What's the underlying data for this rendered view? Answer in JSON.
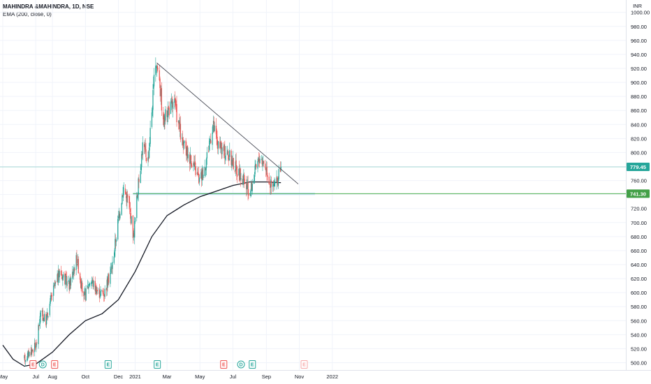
{
  "header": {
    "symbol_line": "MAHINDRA &MAHINDRA, 1D, NSE",
    "indicator_line": "EMA (200, close, 0)"
  },
  "chart_data": {
    "type": "candlestick",
    "currency_label": "INR",
    "ylim": [
      490,
      1010
    ],
    "y_ticks": [
      500,
      520,
      540,
      560,
      580,
      600,
      620,
      640,
      660,
      680,
      700,
      720,
      740,
      760,
      780,
      800,
      820,
      840,
      860,
      880,
      900,
      920,
      940,
      960,
      980,
      1000
    ],
    "y_tick_labels": [
      "500.00",
      "520.00",
      "540.00",
      "560.00",
      "580.00",
      "600.00",
      "620.00",
      "640.00",
      "660.00",
      "680.00",
      "700.00",
      "720.00",
      "740.00",
      "760.00",
      "780.00",
      "800.00",
      "820.00",
      "840.00",
      "860.00",
      "880.00",
      "900.00",
      "920.00",
      "940.00",
      "960.00",
      "980.00",
      "1000.00"
    ],
    "x_range": [
      "2020-05-01",
      "2022-01-31"
    ],
    "x_ticks": [
      {
        "date": "2020-05-01",
        "label": "May"
      },
      {
        "date": "2020-07-01",
        "label": "Jul"
      },
      {
        "date": "2020-08-01",
        "label": "Aug"
      },
      {
        "date": "2020-10-01",
        "label": "Oct"
      },
      {
        "date": "2020-12-01",
        "label": "Dec"
      },
      {
        "date": "2021-01-01",
        "label": "2021"
      },
      {
        "date": "2021-03-01",
        "label": "Mar"
      },
      {
        "date": "2021-05-01",
        "label": "May"
      },
      {
        "date": "2021-07-01",
        "label": "Jul"
      },
      {
        "date": "2021-09-01",
        "label": "Sep"
      },
      {
        "date": "2021-11-01",
        "label": "Nov"
      },
      {
        "date": "2022-01-01",
        "label": "2022"
      }
    ],
    "last_price": 779.45,
    "horizontal_level": 741.3,
    "price_path": [
      [
        "2020-06-10",
        505
      ],
      [
        "2020-06-20",
        515
      ],
      [
        "2020-07-02",
        525
      ],
      [
        "2020-07-10",
        570
      ],
      [
        "2020-07-20",
        560
      ],
      [
        "2020-08-01",
        600
      ],
      [
        "2020-08-15",
        630
      ],
      [
        "2020-09-01",
        610
      ],
      [
        "2020-09-15",
        650
      ],
      [
        "2020-09-28",
        590
      ],
      [
        "2020-10-10",
        620
      ],
      [
        "2020-10-25",
        600
      ],
      [
        "2020-11-05",
        600
      ],
      [
        "2020-11-20",
        640
      ],
      [
        "2020-11-30",
        700
      ],
      [
        "2020-12-10",
        750
      ],
      [
        "2020-12-20",
        730
      ],
      [
        "2020-12-29",
        680
      ],
      [
        "2021-01-05",
        740
      ],
      [
        "2021-01-15",
        810
      ],
      [
        "2021-01-25",
        790
      ],
      [
        "2021-02-01",
        860
      ],
      [
        "2021-02-08",
        930
      ],
      [
        "2021-02-15",
        910
      ],
      [
        "2021-02-22",
        840
      ],
      [
        "2021-03-01",
        860
      ],
      [
        "2021-03-15",
        870
      ],
      [
        "2021-03-30",
        810
      ],
      [
        "2021-04-15",
        790
      ],
      [
        "2021-04-30",
        760
      ],
      [
        "2021-05-10",
        780
      ],
      [
        "2021-05-25",
        840
      ],
      [
        "2021-06-05",
        805
      ],
      [
        "2021-06-20",
        800
      ],
      [
        "2021-07-05",
        780
      ],
      [
        "2021-07-20",
        760
      ],
      [
        "2021-08-01",
        740
      ],
      [
        "2021-08-10",
        770
      ],
      [
        "2021-08-20",
        795
      ],
      [
        "2021-08-31",
        780
      ],
      [
        "2021-09-10",
        750
      ],
      [
        "2021-09-20",
        755
      ],
      [
        "2021-09-28",
        779.45
      ]
    ],
    "ema_path": [
      [
        "2020-05-01",
        525
      ],
      [
        "2020-05-20",
        505
      ],
      [
        "2020-06-10",
        495
      ],
      [
        "2020-07-01",
        498
      ],
      [
        "2020-08-01",
        515
      ],
      [
        "2020-09-01",
        540
      ],
      [
        "2020-10-01",
        560
      ],
      [
        "2020-11-01",
        570
      ],
      [
        "2020-12-01",
        590
      ],
      [
        "2021-01-01",
        630
      ],
      [
        "2021-02-01",
        680
      ],
      [
        "2021-03-01",
        710
      ],
      [
        "2021-04-01",
        725
      ],
      [
        "2021-05-01",
        737
      ],
      [
        "2021-06-01",
        745
      ],
      [
        "2021-07-01",
        753
      ],
      [
        "2021-08-01",
        758
      ],
      [
        "2021-09-01",
        758
      ],
      [
        "2021-09-28",
        757
      ]
    ],
    "trendline": {
      "from": [
        "2021-02-10",
        928
      ],
      "to": [
        "2021-10-30",
        755
      ]
    },
    "events": [
      {
        "date": "2020-06-26",
        "label": "E",
        "kind": "earnings-red"
      },
      {
        "date": "2020-07-14",
        "label": "D",
        "kind": "dividend"
      },
      {
        "date": "2020-08-05",
        "label": "E",
        "kind": "earnings-red"
      },
      {
        "date": "2020-11-12",
        "label": "E",
        "kind": "earnings-green"
      },
      {
        "date": "2021-02-11",
        "label": "E",
        "kind": "earnings-green"
      },
      {
        "date": "2021-06-14",
        "label": "E",
        "kind": "earnings-red"
      },
      {
        "date": "2021-07-16",
        "label": "D",
        "kind": "dividend"
      },
      {
        "date": "2021-08-06",
        "label": "E",
        "kind": "earnings-green"
      },
      {
        "date": "2021-11-10",
        "label": "E",
        "kind": "earnings-future"
      }
    ],
    "colors": {
      "up": "#26a69a",
      "down": "#ef5350",
      "ema": "#131722",
      "trendline": "#434651",
      "level_line": "#4caf50",
      "price_line": "#26a69a",
      "dividend": "#2962ff",
      "future": "#f7a8a8"
    }
  }
}
